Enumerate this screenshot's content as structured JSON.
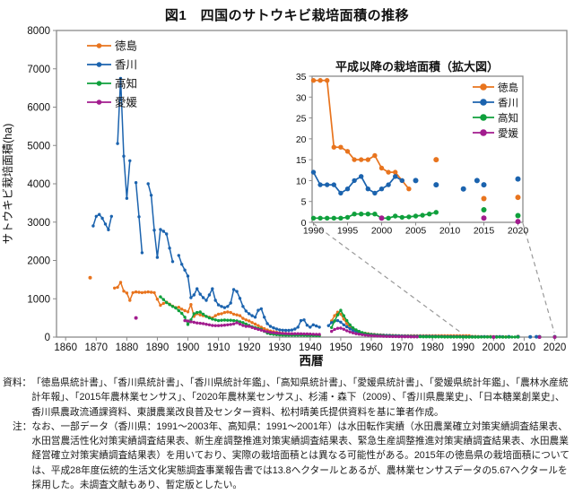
{
  "title": "図1　四国のサトウキビ栽培面積の推移",
  "unit": "ha",
  "notes": {
    "source_label": "資料：",
    "source_text": "「徳島県統計書」、「香川県統計書」、「香川県統計年鑑」、「高知県統計書」、「愛媛県統計書」、「愛媛県統計年鑑」、「農林水産統計年報」、「2015年農林業センサス」、「2020年農林業センサス」、杉浦・森下（2009）、「香川県農業史」、「日本糖業創業史」、香川県農政流通課資料、東讃農業改良普及センター資料、松村晴美氏提供資料を基に筆者作成。",
    "note_label": "注：",
    "note_text": "なお、一部データ（香川県：1991～2003年、高知県：1991～2001年）は水田転作実績（水田農業確立対策実績調査結果表、水田営農活性化対策実績調査結果表、新生産調整推進対策実績調査結果表、緊急生産調整推進対策実績調査結果表、水田農業経営確立対策実績調査結果表）を用いており、実際の栽培面積とは異なる可能性がある。2015年の徳島県の栽培面積については、平成28年度伝統的生活文化実態調査事業報告書では13.8ヘクタールとあるが、農林業センサスデータの5.67ヘクタールを採用した。未調査文献もあり、暫定版としたい。"
  },
  "colors": {
    "tokushima": "#E8741E",
    "kagawa": "#1B63AE",
    "kochi": "#0FA03C",
    "ehime": "#A21C8E",
    "axis": "#8a8a8a",
    "connector": "#999999"
  },
  "chart_data": [
    {
      "type": "line",
      "title": "",
      "xlabel": "西暦",
      "ylabel": "サトウキビ栽培面積(ha)",
      "xlim": [
        1860,
        2020
      ],
      "ylim": [
        0,
        8000
      ],
      "x_ticks": [
        1860,
        1870,
        1880,
        1890,
        1900,
        1910,
        1920,
        1930,
        1940,
        1950,
        1960,
        1970,
        1980,
        1990,
        2000,
        2010,
        2020
      ],
      "y_ticks": [
        0,
        1000,
        2000,
        3000,
        4000,
        5000,
        6000,
        7000,
        8000
      ],
      "legend_position": "top-left",
      "series": [
        {
          "key": "tokushima",
          "name": "徳島",
          "color": "#E8741E",
          "segments": [
            {
              "start": 1876,
              "values": [
                1280,
                1300,
                1430,
                1200,
                1150,
                960,
                1160,
                1180,
                1170,
                1160,
                1170,
                1180,
                1170,
                1160,
                990,
                830,
                880,
                910,
                860,
                810,
                770,
                780,
                730,
                690,
                660,
                850,
                540,
                610,
                580,
                560,
                540,
                520,
                500,
                560,
                600,
                610,
                640,
                655,
                640,
                600,
                580,
                560,
                490,
                450,
                420,
                380,
                340,
                300,
                260,
                220,
                185,
                160,
                140,
                125,
                110,
                100,
                95,
                90,
                85,
                80,
                75,
                70,
                68,
                65,
                60,
                55,
                50,
                45
              ]
            },
            {
              "start": 1947,
              "values": [
                420,
                560,
                650,
                600,
                470,
                350,
                260,
                200,
                165,
                135,
                115,
                100,
                88,
                78,
                70,
                64,
                58,
                54,
                50,
                47,
                44,
                42,
                40,
                38,
                37,
                36,
                35,
                35,
                34,
                34,
                34,
                34,
                34,
                34,
                34,
                34,
                34,
                34,
                34,
                34,
                34,
                34,
                34,
                34,
                34,
                34,
                18,
                18,
                17,
                15,
                15,
                15,
                16,
                13,
                12,
                12,
                10,
                8
              ]
            }
          ],
          "points": [
            [
              1868,
              1550
            ],
            [
              2008,
              15
            ],
            [
              2015,
              5.7
            ],
            [
              2020,
              6
            ]
          ]
        },
        {
          "key": "kagawa",
          "name": "香川",
          "color": "#1B63AE",
          "segments": [
            {
              "start": 1869,
              "values": [
                2900,
                3150,
                3200,
                3100,
                2950,
                2800,
                3150
              ]
            },
            {
              "start": 1877,
              "values": [
                5050,
                6750,
                4720,
                3620,
                4600
              ]
            },
            {
              "start": 1883,
              "values": [
                4030,
                3140,
                2200
              ]
            },
            {
              "start": 1887,
              "values": [
                4000,
                3700,
                2790,
                2080,
                2810,
                2760,
                2690,
                2320,
                1970
              ]
            },
            {
              "start": 1897,
              "values": [
                2130,
                1900,
                1750,
                1590,
                1030,
                1100,
                1260,
                1120,
                1030,
                960,
                1100,
                1260,
                960,
                840,
                800,
                770,
                800,
                890,
                1240,
                1190,
                1010,
                800,
                680,
                610,
                560,
                520,
                700,
                740,
                520,
                350,
                280,
                240,
                210,
                190,
                180,
                175,
                175,
                185,
                210,
                260,
                430,
                450,
                310,
                260,
                320,
                290,
                260
              ]
            },
            {
              "start": 1946,
              "values": [
                300,
                380,
                420,
                430,
                390,
                320,
                270,
                220,
                170,
                140,
                115,
                100,
                88,
                78,
                70,
                63,
                57,
                52,
                48,
                44,
                41,
                38,
                35,
                33,
                31,
                29,
                27,
                26,
                25,
                24,
                23,
                22,
                21,
                20,
                19,
                18,
                17,
                16,
                15,
                14,
                13,
                13,
                12,
                12,
                12,
                9,
                9,
                9,
                7,
                8,
                10,
                11,
                8,
                7,
                8,
                9,
                11,
                10
              ]
            }
          ],
          "points": [
            [
              2005,
              10
            ],
            [
              2008,
              9
            ],
            [
              2012,
              8
            ],
            [
              2014,
              10
            ],
            [
              2015,
              9
            ],
            [
              2020,
              10
            ]
          ]
        },
        {
          "key": "kochi",
          "name": "高知",
          "color": "#0FA03C",
          "segments": [
            {
              "start": 1891,
              "values": [
                1050,
                980,
                900,
                850,
                800,
                760,
                690,
                620,
                520,
                330,
                450,
                610,
                640,
                655,
                600,
                540,
                500,
                470,
                450,
                430,
                440,
                445,
                440,
                440,
                430,
                420,
                400,
                380,
                340,
                305,
                270,
                245,
                225,
                205,
                150,
                105,
                85,
                72,
                62,
                56,
                52,
                50,
                50,
                50,
                50,
                50,
                48,
                46,
                44,
                42,
                40,
                38,
                36
              ]
            },
            {
              "start": 1947,
              "values": [
                250,
                420,
                580,
                700,
                560,
                430,
                320,
                240,
                190,
                150,
                120,
                95,
                78,
                64,
                54,
                46,
                40,
                35,
                30,
                26,
                23,
                20,
                18,
                16,
                14,
                13,
                12,
                11,
                10,
                9,
                8,
                7,
                6,
                5,
                5,
                4,
                4,
                3,
                3,
                2,
                2,
                2,
                2,
                1,
                1,
                1,
                1,
                1,
                1,
                2,
                2,
                2,
                2,
                1,
                1,
                2,
                1,
                1,
                2,
                2,
                2,
                2
              ]
            }
          ],
          "points": [
            [
              2015,
              3
            ],
            [
              2020,
              2
            ]
          ]
        },
        {
          "key": "ehime",
          "name": "愛媛",
          "color": "#A21C8E",
          "segments": [
            {
              "start": 1899,
              "values": [
                430,
                420,
                400,
                385,
                370,
                360,
                350,
                335,
                320,
                305,
                300,
                300,
                305,
                310,
                320,
                330,
                345,
                375,
                340,
                305,
                280,
                280,
                250,
                225,
                200,
                180,
                160,
                140,
                125,
                115,
                105,
                100,
                95,
                92,
                90,
                90,
                90,
                88,
                86,
                85,
                83,
                80,
                75,
                72,
                70
              ]
            },
            {
              "start": 1947,
              "values": [
                150,
                200,
                230,
                235,
                205,
                165,
                135,
                110,
                90,
                75,
                62,
                52,
                44,
                38,
                33,
                28,
                25,
                22,
                19,
                17,
                15,
                13,
                12,
                11,
                10,
                9,
                8,
                7,
                6
              ]
            }
          ],
          "points": [
            [
              1883,
              500
            ],
            [
              2000,
              1
            ],
            [
              2015,
              1
            ],
            [
              2020,
              0.2
            ]
          ]
        }
      ]
    },
    {
      "type": "line",
      "title": "平成以降の栽培面積（拡大図）",
      "xlabel": "",
      "ylabel": "",
      "xlim": [
        1990,
        2020
      ],
      "ylim": [
        0,
        35
      ],
      "x_ticks": [
        1990,
        1995,
        2000,
        2005,
        2010,
        2015,
        2020
      ],
      "y_ticks": [
        0,
        5,
        10,
        15,
        20,
        25,
        30,
        35
      ],
      "legend_position": "top-right",
      "series": [
        {
          "key": "tokushima",
          "name": "徳島",
          "color": "#E8741E",
          "segments": [
            {
              "start": 1990,
              "values": [
                34,
                34,
                34,
                18,
                18,
                17,
                15,
                15,
                15,
                16,
                13,
                12,
                12,
                10,
                8
              ]
            }
          ],
          "points": [
            [
              2008,
              15
            ],
            [
              2015,
              5.7
            ],
            [
              2020,
              6
            ]
          ]
        },
        {
          "key": "kagawa",
          "name": "香川",
          "color": "#1B63AE",
          "segments": [
            {
              "start": 1990,
              "values": [
                12,
                9,
                9,
                9,
                7,
                8,
                10,
                11,
                8,
                7,
                8,
                9,
                11,
                10
              ]
            }
          ],
          "points": [
            [
              2005,
              10
            ],
            [
              2008,
              9
            ],
            [
              2012,
              8
            ],
            [
              2014,
              10
            ],
            [
              2015,
              9
            ],
            [
              2020,
              10.4
            ]
          ]
        },
        {
          "key": "kochi",
          "name": "高知",
          "color": "#0FA03C",
          "segments": [
            {
              "start": 1990,
              "values": [
                1,
                1,
                1,
                1,
                1,
                1.2,
                2,
                2,
                2,
                2,
                1,
                1,
                1.5,
                1.2,
                1.3,
                1.5,
                1.7,
                2,
                2.4
              ]
            }
          ],
          "points": [
            [
              2015,
              3
            ],
            [
              2020,
              1.6
            ]
          ]
        },
        {
          "key": "ehime",
          "name": "愛媛",
          "color": "#A21C8E",
          "segments": [],
          "points": [
            [
              2000,
              1
            ],
            [
              2015,
              1
            ],
            [
              2020,
              0.2
            ]
          ]
        }
      ]
    }
  ]
}
